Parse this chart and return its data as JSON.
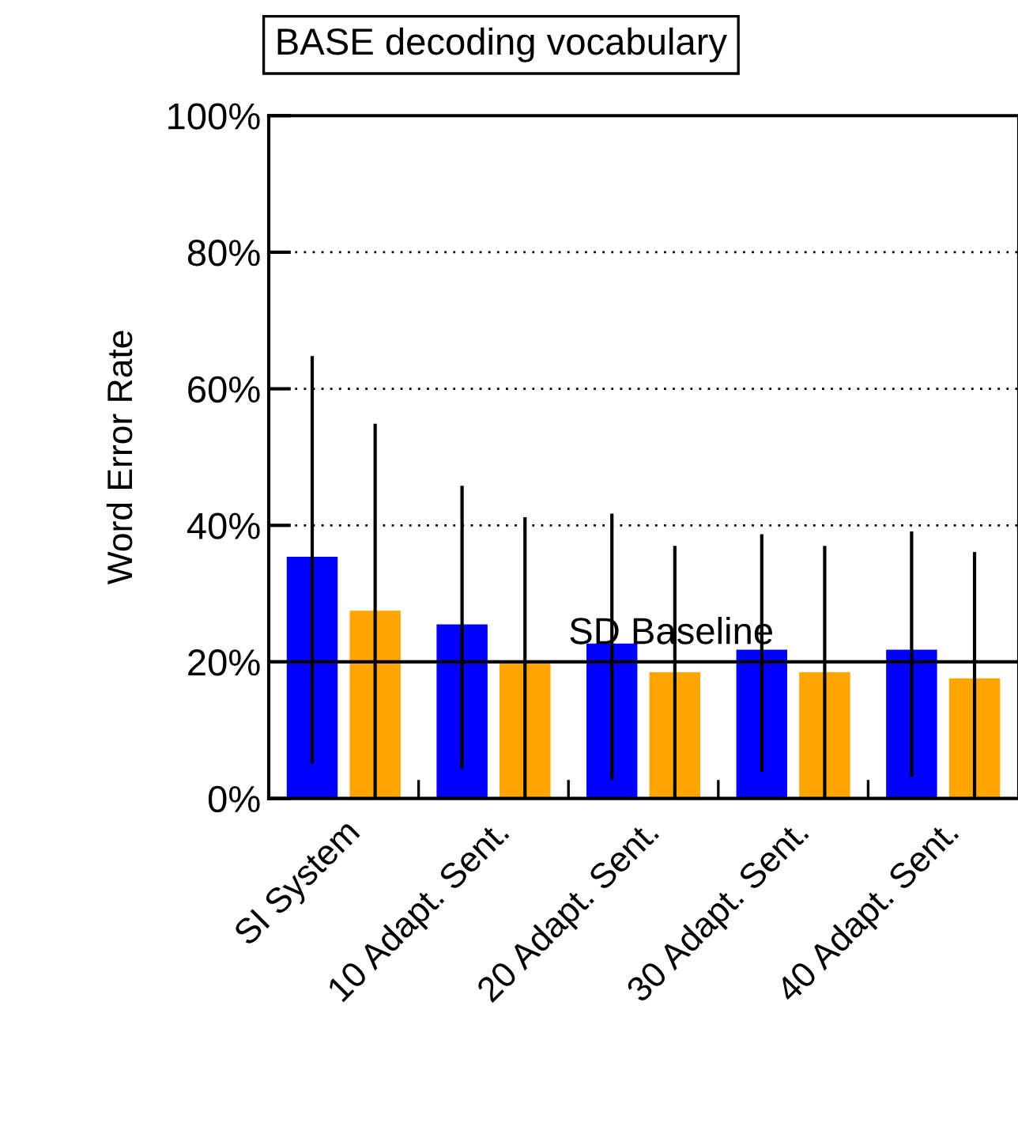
{
  "chart_data": {
    "type": "bar",
    "title": "BASE decoding vocabulary",
    "ylabel": "Word Error Rate",
    "categories": [
      "SI System",
      "10 Adapt. Sent.",
      "20 Adapt. Sent.",
      "30 Adapt. Sent.",
      "40 Adapt. Sent."
    ],
    "series": [
      {
        "color": "#0000ff",
        "values": [
          35.4,
          25.5,
          22.7,
          21.8,
          21.8
        ],
        "errors": [
          [
            5.1,
            64.8
          ],
          [
            4.4,
            45.8
          ],
          [
            2.8,
            41.7
          ],
          [
            3.9,
            38.7
          ],
          [
            3.2,
            39.1
          ]
        ]
      },
      {
        "color": "#ffa500",
        "values": [
          27.5,
          20.1,
          18.5,
          18.5,
          17.6
        ],
        "errors": [
          [
            0,
            54.9
          ],
          [
            0,
            41.2
          ],
          [
            0,
            37
          ],
          [
            0,
            37
          ],
          [
            0,
            36.1
          ]
        ]
      }
    ],
    "ylim": [
      0,
      100
    ],
    "yticks": [
      {
        "value": 0,
        "label": "0%"
      },
      {
        "value": 20,
        "label": "20%"
      },
      {
        "value": 40,
        "label": "40%"
      },
      {
        "value": 60,
        "label": "60%"
      },
      {
        "value": 80,
        "label": "80%"
      },
      {
        "value": 100,
        "label": "100%"
      }
    ],
    "grid": "y",
    "ref_lines": [
      {
        "axis": "y",
        "value": 20,
        "label": "SD Baseline",
        "color": "#000000",
        "line_style": "solid"
      }
    ]
  }
}
